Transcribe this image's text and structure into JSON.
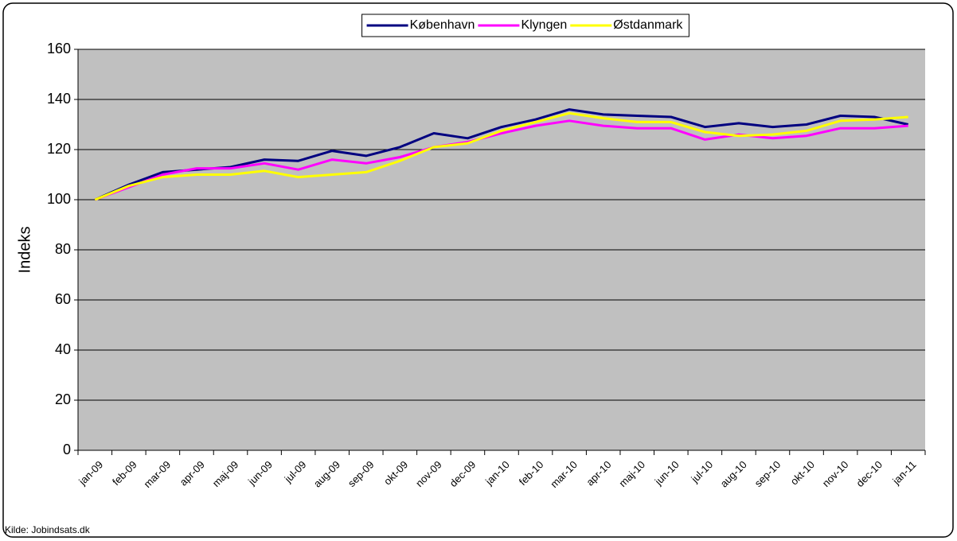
{
  "chart_data": {
    "type": "line",
    "y_label": "Indeks",
    "source": "Kilde: Jobindsats.dk",
    "categories": [
      "jan-09",
      "feb-09",
      "mar-09",
      "apr-09",
      "maj-09",
      "jun-09",
      "jul-09",
      "aug-09",
      "sep-09",
      "okt-09",
      "nov-09",
      "dec-09",
      "jan-10",
      "feb-10",
      "mar-10",
      "apr-10",
      "maj-10",
      "jun-10",
      "jul-10",
      "aug-10",
      "sep-10",
      "okt-10",
      "nov-10",
      "dec-10",
      "jan-11"
    ],
    "series": [
      {
        "name": "København",
        "color": "#000080",
        "values": [
          100,
          106,
          111,
          112,
          113,
          116,
          115.5,
          119.5,
          117.5,
          121,
          126.5,
          124.5,
          129,
          132,
          136,
          134,
          133.5,
          133,
          129,
          130.5,
          129,
          130,
          133.5,
          133,
          130
        ]
      },
      {
        "name": "Klyngen",
        "color": "#ff00ff",
        "values": [
          100,
          105,
          110,
          112.5,
          112.5,
          114.5,
          112,
          116,
          114.5,
          117,
          121,
          123,
          126.5,
          129.5,
          131.5,
          129.5,
          128.5,
          128.5,
          124,
          126,
          124.5,
          125.5,
          128.5,
          128.5,
          129.5
        ]
      },
      {
        "name": "Østdanmark",
        "color": "#ffff00",
        "values": [
          100,
          105.5,
          109,
          110,
          110,
          111.5,
          109,
          110,
          111,
          115.5,
          121,
          122.5,
          127.5,
          131,
          134.5,
          132.5,
          131,
          131,
          127,
          125.5,
          126,
          127.5,
          131.5,
          132,
          133
        ]
      }
    ],
    "ylim": [
      0,
      160
    ],
    "yticks": [
      0,
      20,
      40,
      60,
      80,
      100,
      120,
      140,
      160
    ],
    "grid": true,
    "legend": "top"
  }
}
